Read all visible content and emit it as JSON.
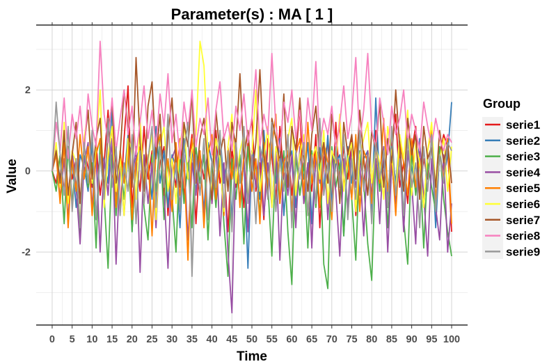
{
  "chart_data": {
    "type": "line",
    "title": "Parameter(s) :  MA [ 1 ]",
    "xlabel": "Time",
    "ylabel": "Value",
    "xlim": [
      -4,
      104
    ],
    "ylim": [
      -3.8,
      3.6
    ],
    "x_ticks": [
      0,
      5,
      10,
      15,
      20,
      25,
      30,
      35,
      40,
      45,
      50,
      55,
      60,
      65,
      70,
      75,
      80,
      85,
      90,
      95,
      100
    ],
    "y_ticks": [
      -2,
      0,
      2
    ],
    "grid": true,
    "legend_title": "Group",
    "legend_position": "right",
    "series": [
      {
        "name": "serie1",
        "color": "#E41A1C",
        "values": [
          0,
          -0.3,
          0.4,
          -0.5,
          0.6,
          -0.2,
          0.3,
          -0.8,
          0.5,
          0.1,
          -0.4,
          0.7,
          -0.6,
          0.2,
          1.5,
          -0.3,
          0.4,
          -1.0,
          0.8,
          2.1,
          -0.9,
          0.3,
          -0.5,
          1.1,
          -0.2,
          0.5,
          -0.7,
          0.2,
          0.6,
          -1.1,
          0.3,
          -0.4,
          0.8,
          -0.6,
          0.1,
          0.9,
          -1.3,
          0.4,
          -0.2,
          0.5,
          -0.8,
          1.0,
          -0.3,
          0.2,
          -1.5,
          0.6,
          -0.4,
          0.3,
          -0.9,
          0.7,
          1.3,
          -0.5,
          0.2,
          -1.2,
          0.8,
          0.4,
          -0.7,
          1.1,
          -0.2,
          0.5,
          -0.6,
          0.3,
          1.6,
          -0.8,
          0.2,
          -0.5,
          0.9,
          -1.4,
          0.3,
          0.7,
          -0.9,
          1.2,
          -0.4,
          0.6,
          -0.2,
          0.8,
          -1.1,
          0.4,
          -0.3,
          0.5,
          -0.7,
          1.0,
          -0.5,
          0.3,
          -0.9,
          0.6,
          1.4,
          -0.4,
          0.2,
          -0.8,
          0.5,
          1.1,
          -0.6,
          0.3,
          -0.2,
          0.7,
          -1.0,
          0.4,
          0.9,
          0.6,
          -1.5
        ]
      },
      {
        "name": "serie2",
        "color": "#377EB8",
        "values": [
          0,
          0.5,
          -0.2,
          0.8,
          -0.6,
          0.3,
          -0.9,
          0.4,
          0.1,
          -0.5,
          0.7,
          -1.2,
          0.6,
          0.2,
          -0.3,
          1.6,
          -0.8,
          0.4,
          -0.2,
          0.9,
          -1.5,
          0.3,
          0.6,
          -0.4,
          0.2,
          -0.7,
          1.1,
          -0.3,
          0.5,
          -0.9,
          0.4,
          0.1,
          -1.4,
          0.8,
          -0.2,
          0.6,
          -0.5,
          0.3,
          -1.0,
          0.7,
          0.2,
          -0.6,
          0.9,
          -0.3,
          0.4,
          -1.2,
          0.6,
          -0.8,
          0.3,
          -2.4,
          0.5,
          0.2,
          -0.7,
          1.0,
          -0.4,
          0.6,
          -0.3,
          0.8,
          -1.1,
          0.2,
          0.5,
          -0.9,
          0.4,
          -0.2,
          0.7,
          -1.3,
          0.3,
          0.6,
          -0.5,
          0.9,
          -0.8,
          0.2,
          0.4,
          -1.6,
          0.6,
          -0.3,
          0.8,
          -0.6,
          0.3,
          0.5,
          -1.0,
          1.8,
          -0.4,
          0.2,
          -0.7,
          0.6,
          -0.3,
          0.9,
          -1.2,
          0.4,
          0.1,
          -0.5,
          0.8,
          -0.9,
          0.3,
          0.6,
          -1.4,
          0.5,
          -0.2,
          0.4,
          1.7
        ]
      },
      {
        "name": "serie3",
        "color": "#4DAF4A",
        "values": [
          0,
          -0.5,
          0.4,
          -1.3,
          0.6,
          -0.8,
          0.3,
          -1.6,
          0.5,
          -0.4,
          0.2,
          -1.9,
          0.7,
          -0.6,
          -2.4,
          0.4,
          -1.1,
          0.3,
          -0.7,
          0.5,
          -1.5,
          0.2,
          0.6,
          -0.9,
          -1.7,
          0.4,
          -0.5,
          0.8,
          -1.2,
          0.3,
          -0.6,
          -2.0,
          0.5,
          -0.8,
          0.2,
          -1.4,
          0.6,
          -0.3,
          0.4,
          -1.7,
          0.2,
          -0.9,
          0.5,
          -1.3,
          -2.6,
          0.3,
          -0.7,
          0.4,
          -1.8,
          0.6,
          -0.5,
          0.2,
          -1.1,
          0.7,
          -0.4,
          -2.1,
          0.3,
          -0.8,
          0.5,
          -1.5,
          -2.8,
          0.4,
          -0.6,
          0.2,
          -1.9,
          0.5,
          -0.9,
          0.3,
          -2.3,
          -2.9,
          0.6,
          -0.4,
          0.2,
          -1.6,
          0.4,
          -0.7,
          -2.2,
          0.5,
          -0.3,
          -1.8,
          -2.7,
          0.3,
          -0.5,
          0.6,
          -1.4,
          0.2,
          -0.8,
          0.4,
          -1.2,
          -2.3,
          0.5,
          -0.6,
          0.3,
          -1.9,
          0.2,
          -0.4,
          -1.0,
          0.6,
          -0.7,
          -1.5,
          -2.1
        ]
      },
      {
        "name": "serie4",
        "color": "#984EA3",
        "values": [
          0,
          0.6,
          -0.7,
          0.3,
          -1.2,
          0.5,
          -0.4,
          -1.8,
          0.2,
          0.7,
          -0.9,
          0.4,
          -2.0,
          0.3,
          -0.6,
          0.8,
          -2.3,
          0.2,
          -1.1,
          0.5,
          -0.3,
          0.6,
          -2.5,
          0.4,
          -0.8,
          0.2,
          -1.4,
          0.7,
          -0.5,
          -2.4,
          0.3,
          0.6,
          -0.9,
          0.4,
          -1.7,
          0.2,
          -0.6,
          0.5,
          -1.2,
          0.3,
          -0.8,
          0.6,
          -1.6,
          0.2,
          -2.0,
          -3.5,
          0.4,
          -0.7,
          0.3,
          -1.5,
          0.5,
          -0.4,
          0.7,
          -1.1,
          0.2,
          -0.9,
          0.5,
          -2.2,
          0.3,
          -0.6,
          0.4,
          -1.4,
          0.6,
          -0.8,
          0.2,
          -1.9,
          0.5,
          -0.3,
          0.7,
          -1.2,
          0.4,
          -0.5,
          -2.1,
          0.3,
          -0.9,
          0.6,
          -0.4,
          0.2,
          -1.6,
          0.5,
          -0.7,
          0.3,
          -1.3,
          0.6,
          -2.0,
          0.2,
          -0.8,
          0.4,
          -1.5,
          0.5,
          -0.3,
          -1.8,
          0.7,
          -0.6,
          -2.1,
          0.3,
          -0.9,
          -1.7,
          0.4,
          -2.0,
          -0.8
        ]
      },
      {
        "name": "serie5",
        "color": "#FF7F00",
        "values": [
          0,
          0.4,
          -0.8,
          0.7,
          -1.4,
          0.3,
          -0.5,
          0.9,
          -0.2,
          0.6,
          -1.1,
          0.4,
          0.8,
          -0.7,
          0.3,
          1.1,
          -0.9,
          0.5,
          -0.3,
          0.7,
          -1.2,
          0.2,
          0.6,
          -0.8,
          0.4,
          -1.6,
          0.5,
          0.9,
          -0.4,
          0.3,
          -1.0,
          0.7,
          -0.6,
          0.2,
          -2.2,
          0.8,
          -0.3,
          0.5,
          -1.4,
          0.4,
          0.9,
          -0.7,
          0.3,
          -1.1,
          0.6,
          -0.2,
          0.8,
          -0.9,
          0.4,
          1.0,
          -0.5,
          0.3,
          -1.3,
          0.7,
          -0.4,
          0.6,
          1.4,
          -0.8,
          0.2,
          0.5,
          -1.0,
          0.4,
          0.8,
          -0.6,
          1.2,
          -0.3,
          0.5,
          -0.9,
          0.7,
          0.2,
          -1.2,
          0.6,
          1.1,
          -0.4,
          0.3,
          -0.7,
          0.9,
          -1.0,
          0.5,
          0.2,
          -0.8,
          0.6,
          -0.3,
          1.3,
          -0.5,
          0.4,
          -1.1,
          0.7,
          0.2,
          -0.6,
          0.8,
          -0.4,
          0.3,
          -0.9,
          0.5,
          1.0,
          -0.7,
          0.4,
          -0.2,
          0.8,
          -1.3
        ]
      },
      {
        "name": "serie6",
        "color": "#FFFF33",
        "values": [
          0,
          0.7,
          -0.4,
          1.2,
          -0.8,
          0.5,
          0.2,
          -1.3,
          0.8,
          1.5,
          -0.3,
          0.6,
          2.0,
          -0.9,
          0.4,
          1.1,
          -0.5,
          0.3,
          -1.1,
          0.8,
          0.5,
          -0.7,
          1.3,
          -0.4,
          0.2,
          0.9,
          -1.2,
          0.6,
          1.1,
          -0.5,
          0.3,
          -0.8,
          0.7,
          1.2,
          -0.2,
          0.5,
          0.9,
          3.2,
          2.6,
          0.4,
          -0.6,
          0.8,
          0.3,
          -1.0,
          0.6,
          1.4,
          -0.3,
          0.5,
          0.9,
          -0.7,
          0.4,
          2.0,
          -0.5,
          0.3,
          1.1,
          -0.9,
          0.6,
          0.2,
          -0.4,
          0.8,
          1.3,
          -0.6,
          0.4,
          0.9,
          -1.1,
          0.3,
          0.6,
          -0.2,
          1.0,
          -0.8,
          0.5,
          0.2,
          1.4,
          -0.5,
          0.3,
          0.7,
          -1.0,
          0.4,
          0.8,
          1.2,
          -0.3,
          0.6,
          0.2,
          -0.7,
          1.1,
          0.4,
          -0.5,
          0.9,
          0.3,
          1.5,
          -0.6,
          0.7,
          0.2,
          -0.9,
          0.5,
          1.2,
          -0.4,
          0.3,
          0.8,
          -0.5,
          0.6
        ]
      },
      {
        "name": "serie7",
        "color": "#A65628",
        "values": [
          0,
          0.5,
          -0.3,
          1.0,
          -0.6,
          0.4,
          1.2,
          -0.8,
          0.6,
          1.5,
          -0.2,
          0.8,
          1.3,
          -0.5,
          0.9,
          1.7,
          -0.3,
          0.4,
          2.0,
          1.1,
          -0.4,
          2.8,
          0.7,
          -0.5,
          1.6,
          2.2,
          0.3,
          1.4,
          -0.6,
          0.9,
          1.8,
          0.2,
          -0.4,
          1.2,
          0.6,
          1.9,
          -0.3,
          0.8,
          1.3,
          0.1,
          -0.7,
          1.5,
          0.4,
          0.9,
          -0.5,
          1.2,
          0.6,
          2.4,
          0.3,
          1.0,
          -0.2,
          0.7,
          2.5,
          0.4,
          -0.6,
          1.3,
          0.8,
          0.2,
          1.9,
          -0.4,
          1.1,
          0.5,
          1.8,
          0.3,
          -0.5,
          0.9,
          1.6,
          0.2,
          0.7,
          -0.3,
          1.4,
          0.6,
          -0.8,
          1.2,
          0.4,
          0.9,
          -0.2,
          1.5,
          0.3,
          -0.6,
          1.0,
          0.5,
          1.7,
          -0.4,
          0.8,
          0.2,
          2.0,
          0.6,
          -0.5,
          1.3,
          0.4,
          0.9,
          -0.7,
          1.1,
          0.3,
          0.6,
          -0.4,
          1.0,
          0.2,
          0.7,
          -0.3
        ]
      },
      {
        "name": "serie8",
        "color": "#F781BF",
        "values": [
          0,
          1.2,
          0.5,
          1.8,
          0.3,
          1.4,
          0.8,
          1.6,
          0.4,
          1.9,
          1.1,
          0.6,
          3.2,
          1.4,
          0.7,
          1.8,
          0.5,
          1.3,
          2.0,
          0.9,
          1.6,
          0.4,
          1.2,
          2.1,
          0.8,
          1.5,
          0.6,
          1.9,
          1.1,
          2.4,
          0.7,
          1.4,
          0.3,
          1.7,
          1.0,
          2.0,
          0.6,
          1.3,
          0.9,
          1.8,
          0.4,
          1.5,
          2.2,
          0.8,
          1.2,
          0.5,
          1.6,
          1.0,
          1.9,
          0.7,
          1.3,
          2.5,
          0.6,
          1.4,
          0.9,
          2.9,
          1.1,
          0.5,
          1.7,
          1.2,
          2.0,
          0.8,
          1.5,
          0.4,
          1.8,
          1.0,
          2.7,
          0.6,
          1.3,
          0.9,
          1.6,
          0.5,
          1.2,
          2.1,
          0.8,
          1.4,
          2.8,
          0.7,
          1.5,
          2.9,
          1.0,
          0.6,
          1.8,
          1.2,
          0.4,
          1.6,
          0.9,
          1.3,
          2.0,
          0.7,
          1.4,
          1.0,
          0.5,
          1.7,
          1.1,
          0.6,
          1.3,
          0.8,
          0.5,
          0.9,
          0.7
        ]
      },
      {
        "name": "serie9",
        "color": "#999999",
        "values": [
          0,
          1.7,
          0.4,
          -0.6,
          1.1,
          -1.0,
          0.3,
          -1.4,
          0.7,
          -0.3,
          1.0,
          -1.2,
          0.4,
          -0.7,
          1.3,
          -0.4,
          0.6,
          -1.1,
          0.2,
          -0.5,
          0.9,
          -1.3,
          0.5,
          -0.8,
          0.3,
          1.1,
          -0.9,
          0.6,
          -0.4,
          1.4,
          -0.7,
          0.2,
          -1.0,
          0.5,
          1.2,
          -2.6,
          0.4,
          -0.6,
          0.8,
          -1.2,
          0.3,
          -0.4,
          1.0,
          -0.9,
          0.5,
          -1.5,
          0.7,
          -0.3,
          1.1,
          -0.8,
          0.4,
          -1.3,
          0.6,
          0.2,
          -0.7,
          1.2,
          -1.0,
          0.3,
          -0.5,
          0.9,
          -1.4,
          0.5,
          -0.2,
          0.7,
          -1.1,
          0.4,
          -0.8,
          1.3,
          -0.6,
          0.2,
          -1.0,
          0.6,
          -0.4,
          0.9,
          -1.2,
          0.3,
          -0.7,
          1.0,
          -0.5,
          0.4,
          -1.3,
          0.7,
          -0.2,
          0.5,
          -0.9,
          1.1,
          -0.6,
          0.3,
          -1.1,
          0.8,
          -0.4,
          0.2,
          -1.4,
          0.6,
          -0.5,
          0.9,
          -1.0,
          0.4,
          -0.3,
          0.7,
          0.5
        ]
      }
    ]
  }
}
